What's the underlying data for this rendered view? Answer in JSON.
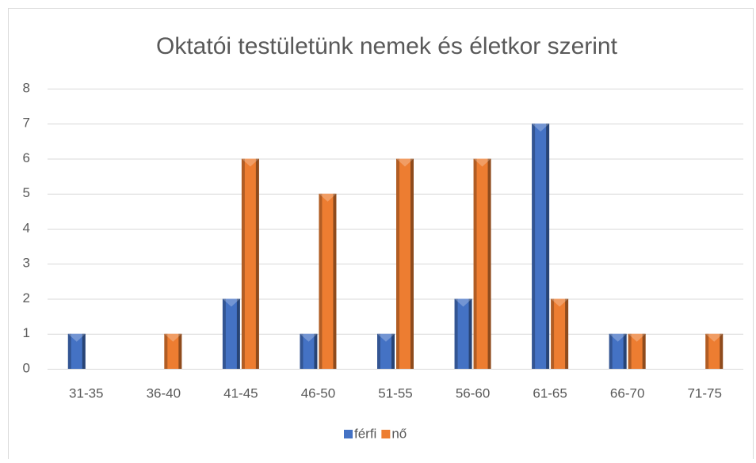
{
  "chart_data": {
    "type": "bar",
    "title": "Oktatói testületünk nemek és életkor szerint",
    "categories": [
      "31-35",
      "36-40",
      "41-45",
      "46-50",
      "51-55",
      "56-60",
      "61-65",
      "66-70",
      "71-75"
    ],
    "series": [
      {
        "name": "férfi",
        "color": "#4472c4",
        "values": [
          1,
          0,
          2,
          1,
          1,
          2,
          7,
          1,
          0
        ]
      },
      {
        "name": "nő",
        "color": "#ed7d31",
        "values": [
          0,
          1,
          6,
          5,
          6,
          6,
          2,
          1,
          1
        ]
      }
    ],
    "ylim": [
      0,
      8
    ],
    "yticks": [
      0,
      1,
      2,
      3,
      4,
      5,
      6,
      7,
      8
    ],
    "grid": true,
    "legend": "bottom"
  }
}
